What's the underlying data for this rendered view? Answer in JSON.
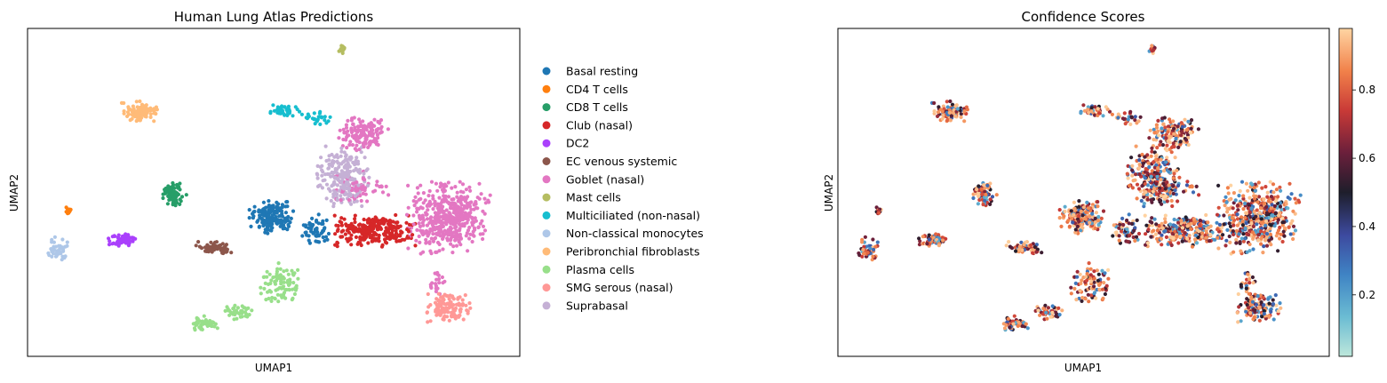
{
  "chart_data": [
    {
      "type": "scatter",
      "title": "Human Lung Atlas Predictions",
      "xlabel": "UMAP1",
      "ylabel": "UMAP2",
      "xticks": "none",
      "yticks": "none",
      "legend_placement": "right",
      "series": [
        {
          "name": "Basal resting",
          "color": "#1f77b4",
          "clusters": [
            [
              306,
              244,
              22,
              16,
              170
            ],
            [
              356,
              259,
              14,
              16,
              55
            ]
          ]
        },
        {
          "name": "CD4 T cells",
          "color": "#ff7f0e",
          "clusters": [
            [
              77,
              236,
              5,
              4,
              12
            ]
          ]
        },
        {
          "name": "CD8 T cells",
          "color": "#279e68",
          "clusters": [
            [
              196,
              219,
              12,
              11,
              80
            ]
          ]
        },
        {
          "name": "Club (nasal)",
          "color": "#d62728",
          "clusters": [
            [
              420,
              260,
              40,
              15,
              260
            ]
          ]
        },
        {
          "name": "DC2",
          "color": "#aa40fc",
          "clusters": [
            [
              138,
              270,
              14,
              6,
              65
            ]
          ]
        },
        {
          "name": "EC venous systemic",
          "color": "#8c564b",
          "clusters": [
            [
              240,
              279,
              18,
              6,
              65
            ]
          ]
        },
        {
          "name": "Goblet (nasal)",
          "color": "#e377c2",
          "clusters": [
            [
              505,
              245,
              40,
              34,
              450
            ],
            [
              410,
              150,
              24,
              16,
              140
            ],
            [
              404,
              210,
              30,
              15,
              70
            ],
            [
              492,
              320,
              10,
              12,
              20
            ]
          ]
        },
        {
          "name": "Mast cells",
          "color": "#b5bd61",
          "clusters": [
            [
              385,
              55,
              3,
              5,
              18
            ]
          ]
        },
        {
          "name": "Multiciliated (non-nasal)",
          "color": "#17becf",
          "clusters": [
            [
              322,
              125,
              18,
              6,
              40
            ],
            [
              358,
              133,
              12,
              6,
              25
            ]
          ]
        },
        {
          "name": "Non-classical monocytes",
          "color": "#aec7e8",
          "clusters": [
            [
              66,
              280,
              10,
              12,
              45
            ]
          ]
        },
        {
          "name": "Peribronchial fibroblasts",
          "color": "#ffbb78",
          "clusters": [
            [
              158,
              127,
              18,
              11,
              90
            ]
          ]
        },
        {
          "name": "Plasma cells",
          "color": "#98df8a",
          "clusters": [
            [
              230,
              365,
              14,
              8,
              50
            ],
            [
              268,
              352,
              13,
              7,
              40
            ],
            [
              316,
              320,
              20,
              20,
              90
            ]
          ]
        },
        {
          "name": "SMG serous (nasal)",
          "color": "#ff9896",
          "clusters": [
            [
              505,
              346,
              22,
              15,
              130
            ]
          ]
        },
        {
          "name": "Suprabasal",
          "color": "#c5b0d5",
          "clusters": [
            [
              385,
              200,
              26,
              30,
              230
            ]
          ]
        }
      ]
    },
    {
      "type": "scatter",
      "title": "Confidence Scores",
      "xlabel": "UMAP1",
      "ylabel": "UMAP2",
      "colorbar_ticks": [
        "0.2",
        "0.4",
        "0.6",
        "0.8"
      ],
      "colorbar_range": [
        0.02,
        0.98
      ],
      "colormap": "icefire"
    }
  ]
}
